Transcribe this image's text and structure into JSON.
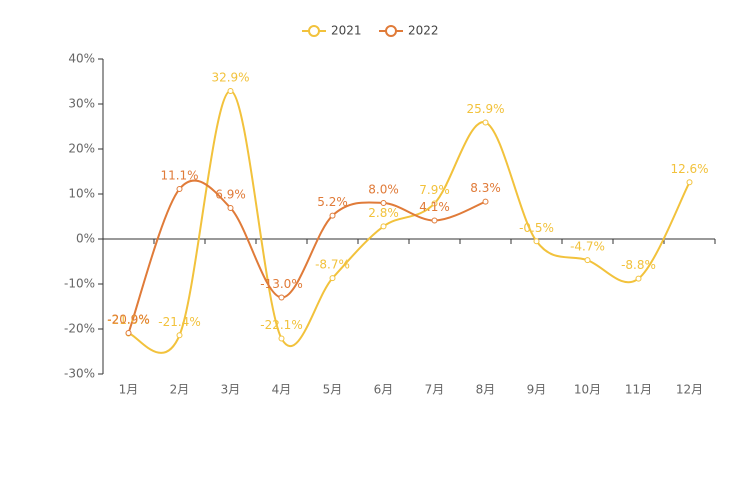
{
  "chart_data": {
    "type": "line",
    "categories": [
      "1月",
      "2月",
      "3月",
      "4月",
      "5月",
      "6月",
      "7月",
      "8月",
      "9月",
      "10月",
      "11月",
      "12月"
    ],
    "series": [
      {
        "name": "2021",
        "color": "#f2c23c",
        "values": [
          -21.0,
          -21.4,
          32.9,
          -22.1,
          -8.7,
          2.8,
          7.9,
          25.9,
          -0.5,
          -4.7,
          -8.8,
          12.6
        ],
        "value_labels": [
          "-21.0%",
          "-21.4%",
          "32.9%",
          "-22.1%",
          "-8.7%",
          "2.8%",
          "7.9%",
          "25.9%",
          "-0.5%",
          "-4.7%",
          "-8.8%",
          "12.6%"
        ]
      },
      {
        "name": "2022",
        "color": "#e07b39",
        "values": [
          -20.9,
          11.1,
          6.9,
          -13.0,
          5.2,
          8.0,
          4.1,
          8.3,
          null,
          null,
          null,
          null
        ],
        "value_labels": [
          "-20.9%",
          "11.1%",
          "6.9%",
          "-13.0%",
          "5.2%",
          "8.0%",
          "4.1%",
          "8.3%",
          null,
          null,
          null,
          null
        ]
      }
    ],
    "ylim": [
      -30,
      40
    ],
    "yticks": [
      {
        "value": -30,
        "label": "-30%"
      },
      {
        "value": -20,
        "label": "-20%"
      },
      {
        "value": -10,
        "label": "-10%"
      },
      {
        "value": 0,
        "label": "0%"
      },
      {
        "value": 10,
        "label": "10%"
      },
      {
        "value": 20,
        "label": "20%"
      },
      {
        "value": 30,
        "label": "30%"
      },
      {
        "value": 40,
        "label": "40%"
      }
    ],
    "legend": "top"
  }
}
